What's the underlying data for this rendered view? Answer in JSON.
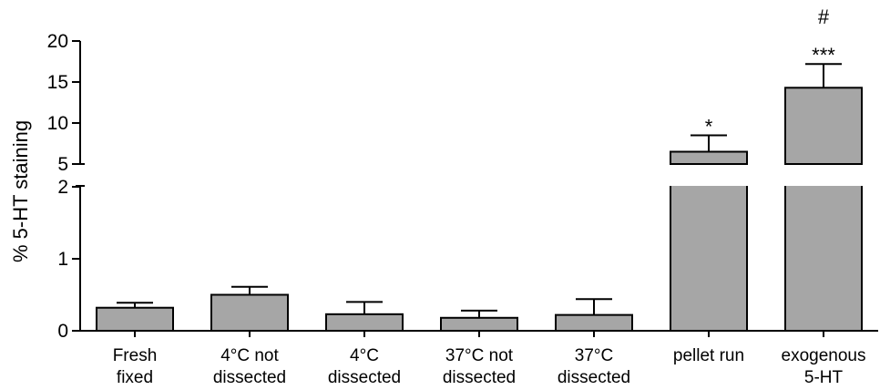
{
  "chart_data": {
    "type": "bar",
    "title": "",
    "xlabel": "",
    "ylabel": "% 5-HT staining",
    "broken_axis": true,
    "y_lower_range": [
      0,
      2
    ],
    "y_upper_range": [
      5,
      20
    ],
    "y_lower_ticks": [
      "0",
      "1",
      "2"
    ],
    "y_upper_ticks": [
      "5",
      "10",
      "15",
      "20"
    ],
    "bar_color": "#a6a6a6",
    "categories": [
      [
        "Fresh",
        "fixed"
      ],
      [
        "4°C not",
        "dissected"
      ],
      [
        "4°C",
        "dissected"
      ],
      [
        "37°C not",
        "dissected"
      ],
      [
        "37°C",
        "dissected"
      ],
      [
        "pellet run"
      ],
      [
        "exogenous",
        "5-HT"
      ]
    ],
    "values": [
      0.32,
      0.5,
      0.23,
      0.18,
      0.22,
      6.5,
      14.3
    ],
    "error_upper": [
      0.39,
      0.61,
      0.4,
      0.28,
      0.44,
      8.5,
      17.2
    ],
    "annotations": [
      {
        "category_index": 5,
        "lines": [
          "*"
        ]
      },
      {
        "category_index": 6,
        "lines": [
          "#",
          "***"
        ]
      }
    ],
    "grid": false,
    "legend": "none"
  }
}
